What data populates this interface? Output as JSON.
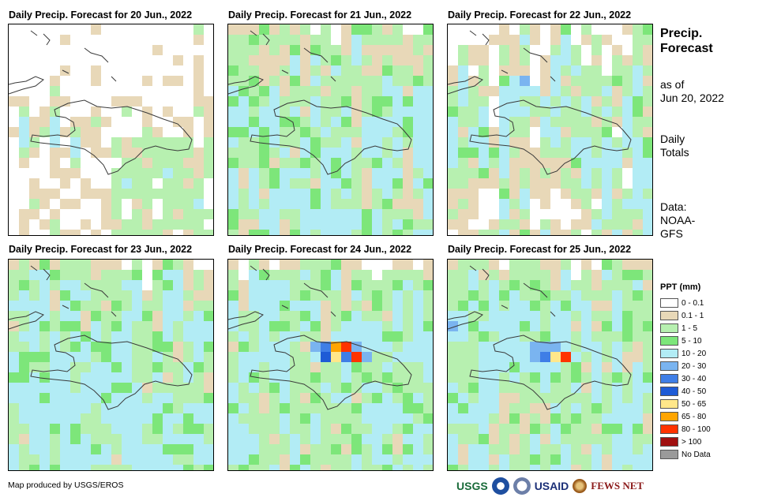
{
  "panels": [
    {
      "title": "Daily Precip. Forecast for 20 Jun., 2022",
      "profile": "dry"
    },
    {
      "title": "Daily Precip. Forecast for 21 Jun., 2022",
      "profile": "moderate"
    },
    {
      "title": "Daily Precip. Forecast for 22 Jun., 2022",
      "profile": "north"
    },
    {
      "title": "Daily Precip. Forecast for 23 Jun., 2022",
      "profile": "south"
    },
    {
      "title": "Daily Precip. Forecast for 24 Jun., 2022",
      "profile": "storm"
    },
    {
      "title": "Daily Precip. Forecast for 25 Jun., 2022",
      "profile": "wet"
    }
  ],
  "sidebar": {
    "title_line1": "Precip.",
    "title_line2": "Forecast",
    "asof_line1": "as of",
    "asof_line2": "Jun 20, 2022",
    "totals_line1": "Daily",
    "totals_line2": "Totals",
    "data_line1": "Data:",
    "data_line2": "NOAA-",
    "data_line3": "GFS"
  },
  "legend": {
    "title": "PPT (mm)",
    "items": [
      {
        "label": "0 - 0.1",
        "color": "#ffffff"
      },
      {
        "label": "0.1 - 1",
        "color": "#e8d8b8"
      },
      {
        "label": "1 - 5",
        "color": "#b7f0b0"
      },
      {
        "label": "5 - 10",
        "color": "#7de67a"
      },
      {
        "label": "10 - 20",
        "color": "#b2ecf5"
      },
      {
        "label": "20 - 30",
        "color": "#7ab4f0"
      },
      {
        "label": "30 - 40",
        "color": "#3f7ee6"
      },
      {
        "label": "40 - 50",
        "color": "#1e5bd6"
      },
      {
        "label": "50 - 65",
        "color": "#ffe78a"
      },
      {
        "label": "65 - 80",
        "color": "#ffa500"
      },
      {
        "label": "80 - 100",
        "color": "#ff3300"
      },
      {
        "label": "> 100",
        "color": "#a01010"
      },
      {
        "label": "No Data",
        "color": "#9a9a9a"
      }
    ]
  },
  "credit": "Map produced by USGS/EROS",
  "logos": {
    "usgs": "USGS",
    "usaid": "USAID",
    "fewsnet": "FEWS NET"
  }
}
